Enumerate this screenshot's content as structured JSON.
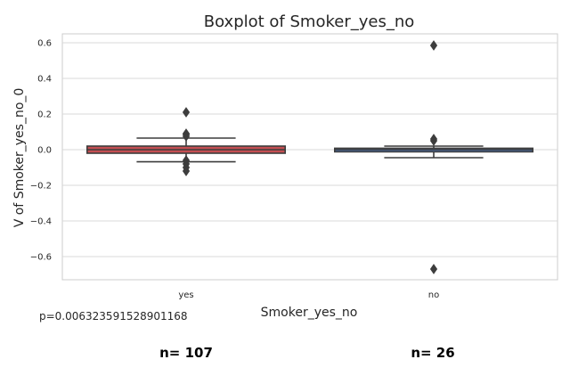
{
  "chart_data": {
    "type": "box",
    "title": "Boxplot of Smoker_yes_no",
    "xlabel": "Smoker_yes_no",
    "ylabel": "V of Smoker_yes_no_0",
    "ylim": [
      -0.73,
      0.65
    ],
    "yticks": [
      -0.6,
      -0.4,
      -0.2,
      0.0,
      0.2,
      0.4,
      0.6
    ],
    "ytick_labels": [
      "−0.6",
      "−0.4",
      "−0.2",
      "0.0",
      "0.2",
      "0.4",
      "0.6"
    ],
    "grid": true,
    "categories": [
      "yes",
      "no"
    ],
    "boxes": [
      {
        "category": "yes",
        "q1": -0.02,
        "median": 0.0,
        "q3": 0.02,
        "whisker_low": -0.068,
        "whisker_high": 0.065,
        "outliers": [
          0.21,
          0.09,
          0.085,
          0.075,
          -0.06,
          -0.08,
          -0.1,
          -0.12
        ],
        "color": "#c44e52"
      },
      {
        "category": "no",
        "q1": -0.012,
        "median": 0.0,
        "q3": 0.008,
        "whisker_low": -0.045,
        "whisker_high": 0.02,
        "outliers": [
          0.585,
          0.06,
          0.05,
          -0.67
        ],
        "color": "#4c72b0"
      }
    ],
    "annotations": {
      "p_value": "p=0.006323591528901168",
      "counts": [
        "n= 107",
        "n= 26"
      ]
    }
  }
}
